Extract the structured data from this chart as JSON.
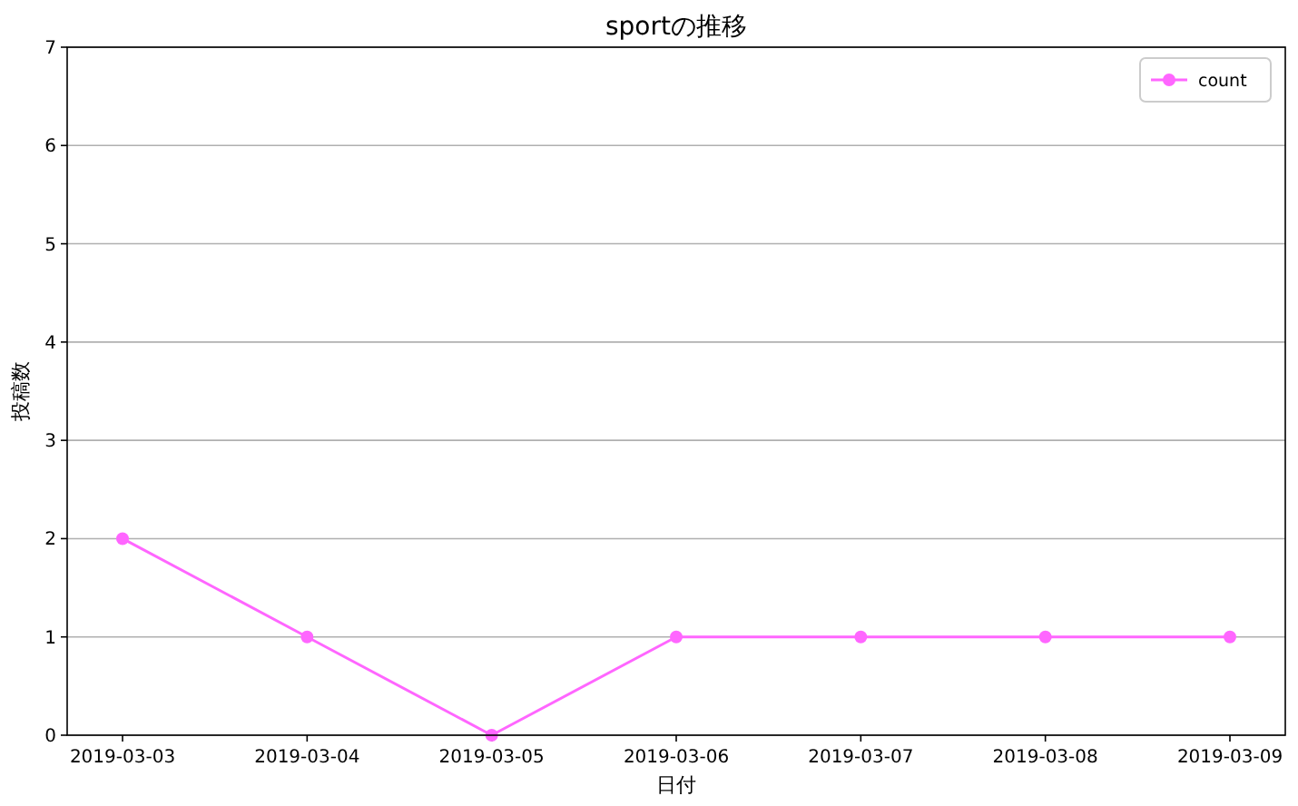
{
  "chart_data": {
    "type": "line",
    "title": "sportの推移",
    "xlabel": "日付",
    "ylabel": "投稿数",
    "x": [
      "2019-03-03",
      "2019-03-04",
      "2019-03-05",
      "2019-03-06",
      "2019-03-07",
      "2019-03-08",
      "2019-03-09"
    ],
    "series": [
      {
        "name": "count",
        "color": "#ff66ff",
        "values": [
          2,
          1,
          0,
          1,
          1,
          1,
          1
        ]
      }
    ],
    "xlim": [
      "2019-03-02T16:48",
      "2019-03-09T07:12"
    ],
    "xticks": [
      {
        "value": "2019-03-03",
        "label": "2019-03-03"
      },
      {
        "value": "2019-03-04",
        "label": "2019-03-04"
      },
      {
        "value": "2019-03-05",
        "label": "2019-03-05"
      },
      {
        "value": "2019-03-06",
        "label": "2019-03-06"
      },
      {
        "value": "2019-03-07",
        "label": "2019-03-07"
      },
      {
        "value": "2019-03-08",
        "label": "2019-03-08"
      },
      {
        "value": "2019-03-09",
        "label": "2019-03-09"
      }
    ],
    "ylim": [
      0,
      7
    ],
    "yticks": [
      0,
      1,
      2,
      3,
      4,
      5,
      6,
      7
    ],
    "grid": "y",
    "legend": "top right",
    "marker": "circle",
    "line_style": "solid"
  }
}
